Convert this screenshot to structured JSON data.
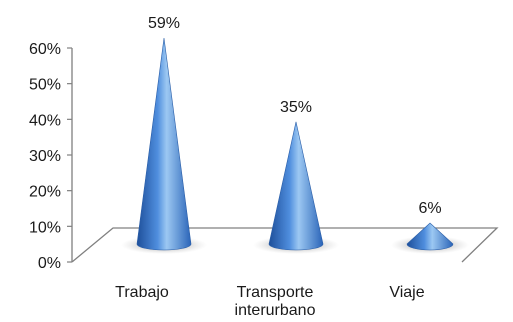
{
  "chart_data": {
    "type": "bar",
    "style": "3d-cone",
    "title": "",
    "xlabel": "",
    "ylabel": "",
    "ylim": [
      0,
      60
    ],
    "y_ticks": [
      "0%",
      "10%",
      "20%",
      "30%",
      "40%",
      "50%",
      "60%"
    ],
    "grid": false,
    "legend": "none",
    "categories": [
      [
        "Trabajo"
      ],
      [
        "Transporte",
        "interurbano"
      ],
      [
        "Viaje"
      ]
    ],
    "values": [
      59,
      35,
      6
    ],
    "data_labels": [
      "59%",
      "35%",
      "6%"
    ],
    "colors": {
      "cone_light": "#9cc8f2",
      "cone_mid": "#4f8ede",
      "cone_dark": "#1e4f9a",
      "shadow": "#9a9a9a",
      "axis": "#808080"
    }
  }
}
